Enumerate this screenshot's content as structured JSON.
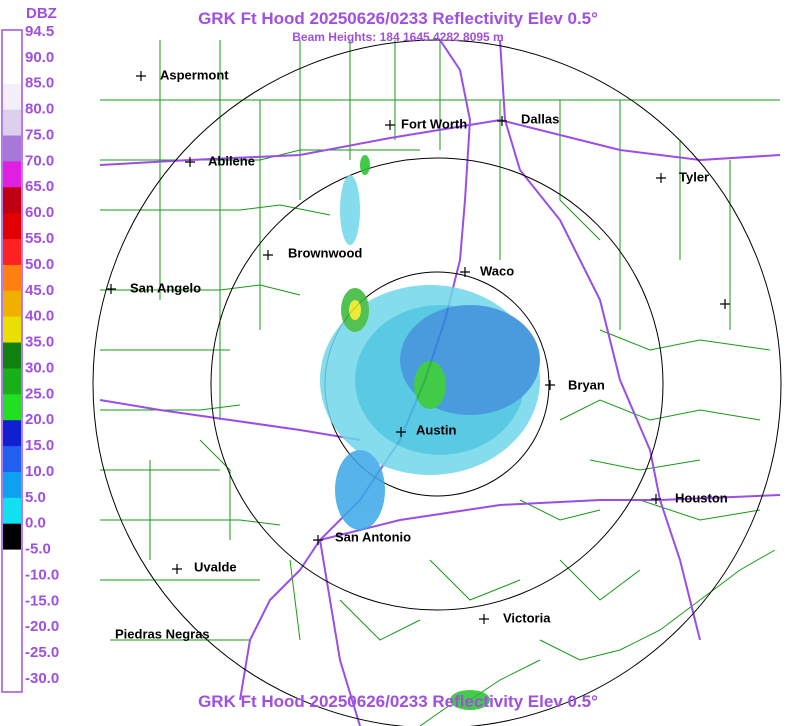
{
  "header": {
    "title": "GRK Ft Hood 20250626/0233 Reflectivity Elev 0.5°",
    "subtitle": "Beam Heights: 184 1645 4282 8095 m"
  },
  "footer": {
    "title": "GRK Ft Hood 20250626/0233 Reflectivity Elev 0.5°"
  },
  "legend": {
    "unit": "DBZ",
    "labels": [
      "94.5",
      "90.0",
      "85.0",
      "80.0",
      "75.0",
      "70.0",
      "65.0",
      "60.0",
      "55.0",
      "50.0",
      "45.0",
      "40.0",
      "35.0",
      "30.0",
      "25.0",
      "20.0",
      "15.0",
      "10.0",
      "5.0",
      "0.0",
      "-5.0",
      "-10.0",
      "-15.0",
      "-20.0",
      "-25.0",
      "-30.0"
    ]
  },
  "cities": [
    {
      "name": "Aspermont"
    },
    {
      "name": "Fort Worth"
    },
    {
      "name": "Dallas"
    },
    {
      "name": "Abilene"
    },
    {
      "name": "Tyler"
    },
    {
      "name": "Brownwood"
    },
    {
      "name": "Waco"
    },
    {
      "name": "San Angelo"
    },
    {
      "name": "Bryan"
    },
    {
      "name": "Austin"
    },
    {
      "name": "Houston"
    },
    {
      "name": "San Antonio"
    },
    {
      "name": "Uvalde"
    },
    {
      "name": "Victoria"
    },
    {
      "name": "Piedras Negras"
    }
  ]
}
